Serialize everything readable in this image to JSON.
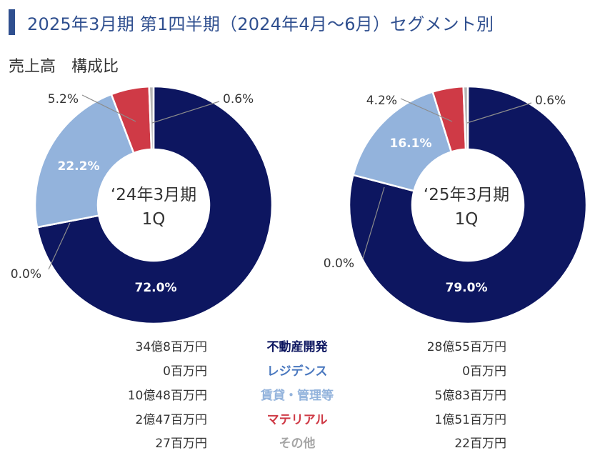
{
  "header": {
    "title": "2025年3月期 第1四半期（2024年4月～6月）セグメント別",
    "subtitle": "売上高　構成比"
  },
  "chart_data": [
    {
      "type": "pie",
      "donut": true,
      "center_label_line1": "‘24年3月期",
      "center_label_line2": "1Q",
      "categories": [
        "不動産開発",
        "レジデンス",
        "賃貸・管理等",
        "マテリアル",
        "その他"
      ],
      "values": [
        72.0,
        0.0,
        22.2,
        5.2,
        0.6
      ],
      "labels": [
        "72.0%",
        "0.0%",
        "22.2%",
        "5.2%",
        "0.6%"
      ],
      "colors": [
        "#0d1660",
        "#4a78bf",
        "#93b3dc",
        "#cf3a46",
        "#b5b5b5"
      ]
    },
    {
      "type": "pie",
      "donut": true,
      "center_label_line1": "‘25年3月期",
      "center_label_line2": "1Q",
      "categories": [
        "不動産開発",
        "レジデンス",
        "賃貸・管理等",
        "マテリアル",
        "その他"
      ],
      "values": [
        79.0,
        0.0,
        16.1,
        4.2,
        0.6
      ],
      "labels": [
        "79.0%",
        "0.0%",
        "16.1%",
        "4.2%",
        "0.6%"
      ],
      "colors": [
        "#0d1660",
        "#4a78bf",
        "#93b3dc",
        "#cf3a46",
        "#b5b5b5"
      ]
    }
  ],
  "table": {
    "rows": [
      {
        "left": "34億8百万円",
        "name": "不動産開発",
        "right": "28億55百万円",
        "color": "#0d1660"
      },
      {
        "left": "0百万円",
        "name": "レジデンス",
        "right": "0百万円",
        "color": "#4a78bf"
      },
      {
        "left": "10億48百万円",
        "name": "賃貸・管理等",
        "right": "5億83百万円",
        "color": "#93b3dc"
      },
      {
        "left": "2億47百万円",
        "name": "マテリアル",
        "right": "1億51百万円",
        "color": "#cf3a46"
      },
      {
        "left": "27百万円",
        "name": "その他",
        "right": "22百万円",
        "color": "#a6a6a6"
      }
    ]
  }
}
